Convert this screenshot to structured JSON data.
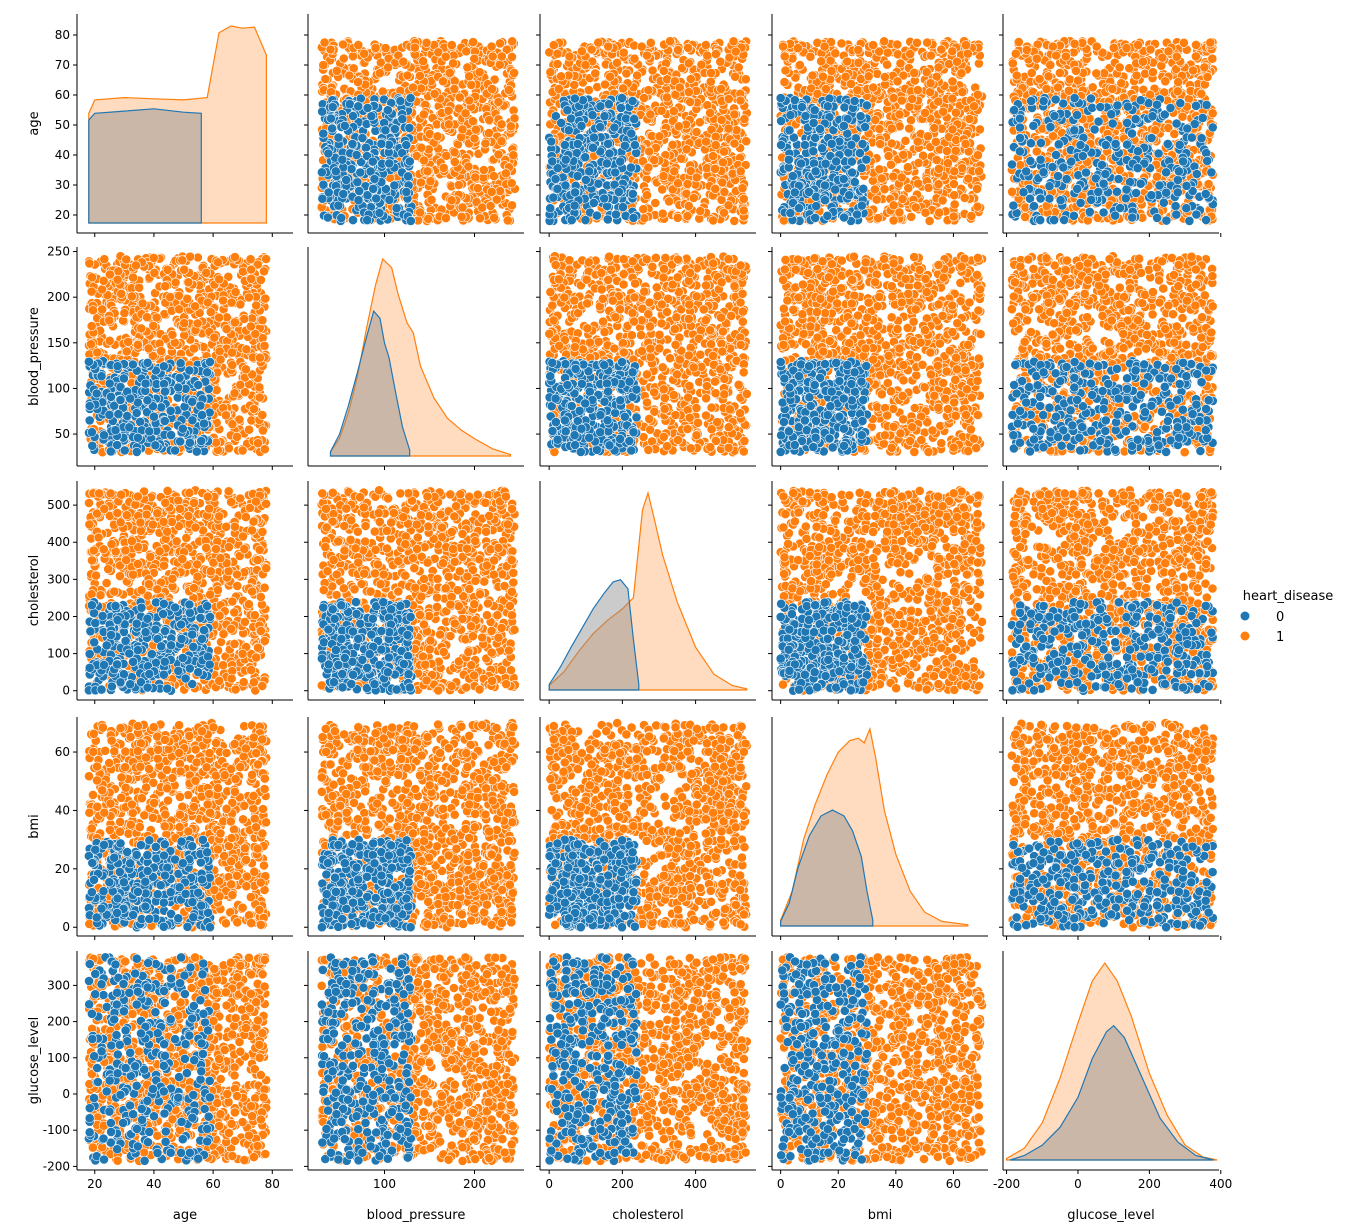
{
  "chart_data": {
    "type": "scatter",
    "kind": "pairplot",
    "hue": {
      "title": "heart_disease",
      "levels": [
        {
          "label": "0",
          "color": "#1f77b4"
        },
        {
          "label": "1",
          "color": "#ff7f0e"
        }
      ]
    },
    "variables": [
      {
        "name": "age",
        "label": "age",
        "range": [
          14,
          87
        ],
        "ticks": [
          20,
          30,
          40,
          50,
          60,
          70,
          80
        ],
        "xticks": [
          20,
          40,
          60,
          80
        ],
        "min": 18,
        "max": 78
      },
      {
        "name": "blood_pressure",
        "label": "blood_pressure",
        "range": [
          15,
          255
        ],
        "ticks": [
          50,
          100,
          150,
          200,
          250
        ],
        "xticks": [
          100,
          200
        ],
        "min": 30,
        "max": 245
      },
      {
        "name": "cholesterol",
        "label": "cholesterol",
        "range": [
          -25,
          565
        ],
        "ticks": [
          0,
          100,
          200,
          300,
          400,
          500
        ],
        "xticks": [
          0,
          200,
          400
        ],
        "min": 0,
        "max": 540
      },
      {
        "name": "bmi",
        "label": "bmi",
        "range": [
          -3,
          72
        ],
        "ticks": [
          0,
          20,
          40,
          60
        ],
        "xticks": [
          0,
          20,
          40,
          60
        ],
        "min": 0,
        "max": 70
      },
      {
        "name": "glucose_level",
        "label": "glucose_level",
        "range": [
          -210,
          395
        ],
        "ticks": [
          -200,
          -100,
          0,
          100,
          200,
          300,
          400
        ],
        "xticks": [
          -200,
          0,
          200,
          400
        ],
        "min": -185,
        "max": 378
      }
    ],
    "class_regions_description": "heart_disease = 0 points occupy the lower-left region of each pair (age < 60, blood_pressure < 130, cholesterol < 240, bmi < 30); all other points are heart_disease = 1",
    "class_0_bounds": {
      "age": [
        18,
        59
      ],
      "blood_pressure": [
        30,
        130
      ],
      "cholesterol": [
        0,
        240
      ],
      "bmi": [
        0,
        30
      ],
      "glucose_level": [
        -185,
        378
      ]
    },
    "kde": {
      "age": {
        "0": [
          [
            18,
            0.92
          ],
          [
            20,
            0.98
          ],
          [
            30,
            1.0
          ],
          [
            40,
            1.02
          ],
          [
            50,
            0.99
          ],
          [
            56,
            0.98
          ]
        ],
        "1": [
          [
            18,
            0.98
          ],
          [
            20,
            1.1
          ],
          [
            30,
            1.12
          ],
          [
            40,
            1.11
          ],
          [
            50,
            1.1
          ],
          [
            58,
            1.12
          ],
          [
            62,
            1.7
          ],
          [
            66,
            1.76
          ],
          [
            70,
            1.74
          ],
          [
            74,
            1.75
          ],
          [
            78,
            1.5
          ]
        ]
      },
      "blood_pressure": {
        "0": [
          [
            40,
            0.03
          ],
          [
            50,
            0.15
          ],
          [
            60,
            0.35
          ],
          [
            70,
            0.58
          ],
          [
            80,
            0.82
          ],
          [
            88,
            1.0
          ],
          [
            95,
            0.95
          ],
          [
            100,
            0.78
          ],
          [
            105,
            0.68
          ],
          [
            112,
            0.45
          ],
          [
            120,
            0.2
          ],
          [
            128,
            0.04
          ]
        ],
        "1": [
          [
            40,
            0.03
          ],
          [
            50,
            0.12
          ],
          [
            60,
            0.3
          ],
          [
            70,
            0.55
          ],
          [
            80,
            0.88
          ],
          [
            90,
            1.18
          ],
          [
            98,
            1.36
          ],
          [
            108,
            1.3
          ],
          [
            115,
            1.12
          ],
          [
            125,
            0.92
          ],
          [
            132,
            0.85
          ],
          [
            140,
            0.62
          ],
          [
            155,
            0.4
          ],
          [
            170,
            0.26
          ],
          [
            185,
            0.18
          ],
          [
            200,
            0.12
          ],
          [
            220,
            0.05
          ],
          [
            240,
            0.01
          ]
        ]
      },
      "cholesterol": {
        "0": [
          [
            0,
            0.05
          ],
          [
            30,
            0.2
          ],
          [
            60,
            0.38
          ],
          [
            90,
            0.55
          ],
          [
            120,
            0.72
          ],
          [
            150,
            0.86
          ],
          [
            175,
            0.96
          ],
          [
            195,
            0.98
          ],
          [
            215,
            0.9
          ],
          [
            230,
            0.45
          ],
          [
            245,
            0.05
          ]
        ],
        "1": [
          [
            0,
            0.04
          ],
          [
            40,
            0.16
          ],
          [
            80,
            0.34
          ],
          [
            120,
            0.5
          ],
          [
            160,
            0.62
          ],
          [
            200,
            0.72
          ],
          [
            230,
            0.82
          ],
          [
            255,
            1.6
          ],
          [
            270,
            1.75
          ],
          [
            285,
            1.55
          ],
          [
            310,
            1.2
          ],
          [
            350,
            0.78
          ],
          [
            400,
            0.38
          ],
          [
            450,
            0.14
          ],
          [
            500,
            0.04
          ],
          [
            540,
            0.01
          ]
        ]
      },
      "bmi": {
        "0": [
          [
            0,
            0.04
          ],
          [
            3,
            0.2
          ],
          [
            6,
            0.5
          ],
          [
            10,
            0.78
          ],
          [
            14,
            0.95
          ],
          [
            18,
            1.0
          ],
          [
            22,
            0.95
          ],
          [
            25,
            0.82
          ],
          [
            28,
            0.6
          ],
          [
            30,
            0.3
          ],
          [
            32,
            0.05
          ]
        ],
        "1": [
          [
            0,
            0.05
          ],
          [
            4,
            0.3
          ],
          [
            8,
            0.75
          ],
          [
            12,
            1.05
          ],
          [
            16,
            1.3
          ],
          [
            20,
            1.5
          ],
          [
            24,
            1.6
          ],
          [
            27,
            1.62
          ],
          [
            29,
            1.58
          ],
          [
            31,
            1.7
          ],
          [
            33,
            1.45
          ],
          [
            36,
            1.0
          ],
          [
            40,
            0.62
          ],
          [
            45,
            0.3
          ],
          [
            50,
            0.12
          ],
          [
            56,
            0.04
          ],
          [
            65,
            0.01
          ]
        ]
      },
      "glucose_level": {
        "0": [
          [
            -190,
            0.0
          ],
          [
            -150,
            0.03
          ],
          [
            -100,
            0.1
          ],
          [
            -50,
            0.22
          ],
          [
            0,
            0.42
          ],
          [
            40,
            0.68
          ],
          [
            80,
            0.86
          ],
          [
            100,
            0.9
          ],
          [
            130,
            0.82
          ],
          [
            180,
            0.55
          ],
          [
            230,
            0.28
          ],
          [
            280,
            0.12
          ],
          [
            330,
            0.03
          ],
          [
            380,
            0.0
          ]
        ],
        "1": [
          [
            -200,
            0.01
          ],
          [
            -150,
            0.08
          ],
          [
            -100,
            0.25
          ],
          [
            -50,
            0.55
          ],
          [
            0,
            0.92
          ],
          [
            40,
            1.2
          ],
          [
            75,
            1.32
          ],
          [
            110,
            1.2
          ],
          [
            150,
            0.96
          ],
          [
            200,
            0.58
          ],
          [
            250,
            0.3
          ],
          [
            300,
            0.1
          ],
          [
            350,
            0.02
          ],
          [
            390,
            0.0
          ]
        ]
      }
    }
  }
}
